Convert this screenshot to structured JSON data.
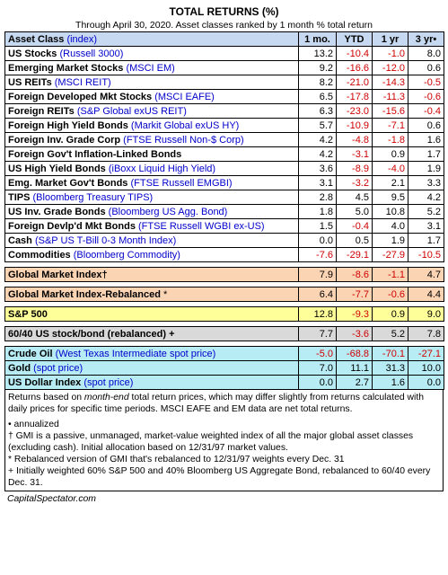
{
  "title": "TOTAL RETURNS (%)",
  "subtitle": "Through April 30, 2020. Asset classes ranked by 1 month % total return",
  "header": {
    "asset": "Asset Class",
    "index": "(index)",
    "c1": "1 mo.",
    "c2": "YTD",
    "c3": "1 yr",
    "c4": "3 yr•"
  },
  "rows": [
    {
      "name": "US Stocks",
      "index": "(Russell 3000)",
      "m1": "13.2",
      "ytd": "-10.4",
      "y1": "-1.0",
      "y3": "8.0"
    },
    {
      "name": "Emerging Market Stocks",
      "index": "(MSCI EM)",
      "m1": "9.2",
      "ytd": "-16.6",
      "y1": "-12.0",
      "y3": "0.6"
    },
    {
      "name": "US REITs",
      "index": "(MSCI REIT)",
      "m1": "8.2",
      "ytd": "-21.0",
      "y1": "-14.3",
      "y3": "-0.5"
    },
    {
      "name": "Foreign Developed Mkt Stocks",
      "index": "(MSCI EAFE)",
      "m1": "6.5",
      "ytd": "-17.8",
      "y1": "-11.3",
      "y3": "-0.6"
    },
    {
      "name": "Foreign REITs",
      "index": "(S&P Global exUS REIT)",
      "m1": "6.3",
      "ytd": "-23.0",
      "y1": "-15.6",
      "y3": "-0.4"
    },
    {
      "name": "Foreign High Yield Bonds",
      "index": "(Markit Global exUS HY)",
      "m1": "5.7",
      "ytd": "-10.9",
      "y1": "-7.1",
      "y3": "0.6"
    },
    {
      "name": "Foreign Inv. Grade Corp",
      "index": "(FTSE Russell Non-$ Corp)",
      "m1": "4.2",
      "ytd": "-4.8",
      "y1": "-1.8",
      "y3": "1.6"
    },
    {
      "name": "Foreign Gov't Inflation-Linked Bonds",
      "index": "",
      "m1": "4.2",
      "ytd": "-3.1",
      "y1": "0.9",
      "y3": "1.7"
    },
    {
      "name": "US High Yield Bonds",
      "index": "(iBoxx Liquid High Yield)",
      "m1": "3.6",
      "ytd": "-8.9",
      "y1": "-4.0",
      "y3": "1.9"
    },
    {
      "name": "Emg. Market Gov't Bonds",
      "index": "(FTSE Russell EMGBI)",
      "m1": "3.1",
      "ytd": "-3.2",
      "y1": "2.1",
      "y3": "3.3"
    },
    {
      "name": "TIPS",
      "index": "(Bloomberg Treasury TIPS)",
      "m1": "2.8",
      "ytd": "4.5",
      "y1": "9.5",
      "y3": "4.2"
    },
    {
      "name": "US Inv. Grade Bonds",
      "index": "(Bloomberg US Agg. Bond)",
      "m1": "1.8",
      "ytd": "5.0",
      "y1": "10.8",
      "y3": "5.2"
    },
    {
      "name": "Foreign Devlp'd Mkt Bonds",
      "index": "(FTSE Russell WGBI ex-US)",
      "m1": "1.5",
      "ytd": "-0.4",
      "y1": "4.0",
      "y3": "3.1"
    },
    {
      "name": "Cash",
      "index": "(S&P US T-Bill 0-3 Month Index)",
      "m1": "0.0",
      "ytd": "0.5",
      "y1": "1.9",
      "y3": "1.7"
    },
    {
      "name": "Commodities",
      "index": "(Bloomberg Commodity)",
      "m1": "-7.6",
      "ytd": "-29.1",
      "y1": "-27.9",
      "y3": "-10.5"
    }
  ],
  "gmi": {
    "name": "Global Market Index†",
    "m1": "7.9",
    "ytd": "-8.6",
    "y1": "-1.1",
    "y3": "4.7"
  },
  "gmir": {
    "name": "Global Market Index-Rebalanced",
    "mark": "*",
    "m1": "6.4",
    "ytd": "-7.7",
    "y1": "-0.6",
    "y3": "4.4"
  },
  "sp500": {
    "name": "S&P 500",
    "m1": "12.8",
    "ytd": "-9.3",
    "y1": "0.9",
    "y3": "9.0"
  },
  "sixty": {
    "name": "60/40 US stock/bond (rebalanced) +",
    "m1": "7.7",
    "ytd": "-3.6",
    "y1": "5.2",
    "y3": "7.8"
  },
  "commod": [
    {
      "name": "Crude Oil",
      "index": "(West Texas Intermediate spot price)",
      "m1": "-5.0",
      "ytd": "-68.8",
      "y1": "-70.1",
      "y3": "-27.1"
    },
    {
      "name": "Gold",
      "index": "(spot price)",
      "m1": "7.0",
      "ytd": "11.1",
      "y1": "31.3",
      "y3": "10.0"
    },
    {
      "name": "US Dollar Index",
      "index": "(spot price)",
      "m1": "0.0",
      "ytd": "2.7",
      "y1": "1.6",
      "y3": "0.0"
    }
  ],
  "notes": {
    "n1a": "Returns based on ",
    "n1b": "month-end",
    "n1c": " total return prices, which may differ slightly from returns calculated with daily prices for specific time periods. MSCI EAFE and EM data are net total returns.",
    "n2": "• annualized",
    "n3": "† GMI is a passive, unmanaged, market-value weighted index of all the major global asset classes (excluding cash). Initial allocation based on 12/31/97 market values.",
    "n4": "* Rebalanced version of GMI that's rebalanced to 12/31/97 weights every Dec. 31",
    "n5": "+ Initially weighted 60% S&P 500 and 40% Bloomberg US Aggregate Bond, rebalanced to 60/40 every Dec. 31."
  },
  "footer": "CapitalSpectator.com"
}
